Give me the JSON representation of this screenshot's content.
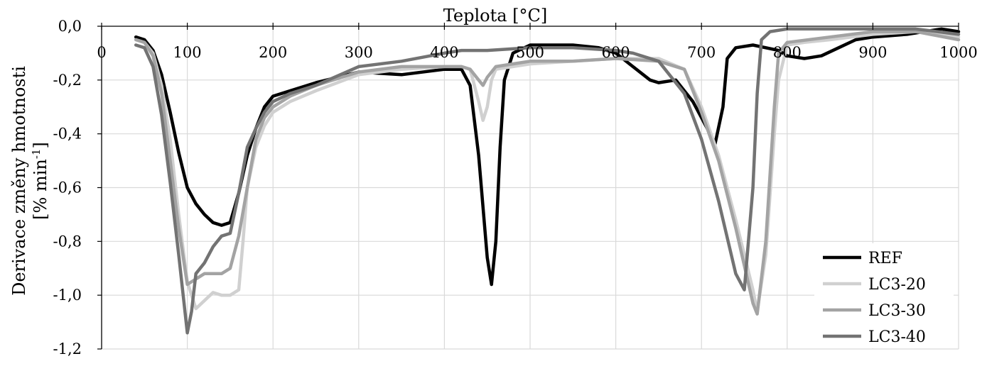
{
  "chart_data": {
    "type": "line",
    "title": "",
    "xlabel": "Teplota [°C]",
    "ylabel_line1": "Derivace změny hmotnosti",
    "ylabel_line2_prefix": "[% min",
    "ylabel_line2_sup": "-1",
    "ylabel_line2_suffix": "]",
    "xlim": [
      0,
      1000
    ],
    "ylim": [
      -1.2,
      0.0
    ],
    "x_ticks": [
      0,
      100,
      200,
      300,
      400,
      500,
      600,
      700,
      800,
      900,
      1000
    ],
    "x_tick_labels": [
      "0",
      "100",
      "200",
      "300",
      "400",
      "500",
      "600",
      "700",
      "800",
      "900",
      "1000"
    ],
    "y_ticks": [
      0.0,
      -0.2,
      -0.4,
      -0.6,
      -0.8,
      -1.0,
      -1.2
    ],
    "y_tick_labels": [
      "0,0",
      "-0,2",
      "-0,4",
      "-0,6",
      "-0,8",
      "-1,0",
      "-1,2"
    ],
    "x_axis_position": "top",
    "grid": true,
    "legend_position": "bottom-right",
    "series": [
      {
        "name": "REF",
        "color": "#000000",
        "points": [
          [
            40,
            -0.04
          ],
          [
            50,
            -0.05
          ],
          [
            60,
            -0.09
          ],
          [
            70,
            -0.18
          ],
          [
            80,
            -0.32
          ],
          [
            90,
            -0.47
          ],
          [
            100,
            -0.6
          ],
          [
            110,
            -0.66
          ],
          [
            120,
            -0.7
          ],
          [
            130,
            -0.73
          ],
          [
            140,
            -0.74
          ],
          [
            150,
            -0.73
          ],
          [
            160,
            -0.62
          ],
          [
            170,
            -0.48
          ],
          [
            180,
            -0.38
          ],
          [
            190,
            -0.3
          ],
          [
            200,
            -0.26
          ],
          [
            220,
            -0.24
          ],
          [
            250,
            -0.21
          ],
          [
            300,
            -0.17
          ],
          [
            350,
            -0.18
          ],
          [
            400,
            -0.16
          ],
          [
            420,
            -0.16
          ],
          [
            430,
            -0.22
          ],
          [
            440,
            -0.48
          ],
          [
            450,
            -0.86
          ],
          [
            455,
            -0.96
          ],
          [
            460,
            -0.8
          ],
          [
            465,
            -0.45
          ],
          [
            470,
            -0.2
          ],
          [
            480,
            -0.1
          ],
          [
            500,
            -0.07
          ],
          [
            550,
            -0.07
          ],
          [
            580,
            -0.08
          ],
          [
            600,
            -0.1
          ],
          [
            620,
            -0.15
          ],
          [
            640,
            -0.2
          ],
          [
            650,
            -0.21
          ],
          [
            670,
            -0.2
          ],
          [
            690,
            -0.28
          ],
          [
            710,
            -0.4
          ],
          [
            715,
            -0.45
          ],
          [
            725,
            -0.3
          ],
          [
            730,
            -0.12
          ],
          [
            740,
            -0.08
          ],
          [
            760,
            -0.07
          ],
          [
            790,
            -0.09
          ],
          [
            800,
            -0.11
          ],
          [
            820,
            -0.12
          ],
          [
            840,
            -0.11
          ],
          [
            860,
            -0.08
          ],
          [
            880,
            -0.05
          ],
          [
            900,
            -0.04
          ],
          [
            940,
            -0.03
          ],
          [
            980,
            -0.01
          ],
          [
            1000,
            -0.02
          ]
        ]
      },
      {
        "name": "LC3-20",
        "color": "#d0d0d0",
        "points": [
          [
            40,
            -0.05
          ],
          [
            50,
            -0.06
          ],
          [
            60,
            -0.1
          ],
          [
            70,
            -0.22
          ],
          [
            80,
            -0.42
          ],
          [
            90,
            -0.7
          ],
          [
            100,
            -0.95
          ],
          [
            110,
            -1.05
          ],
          [
            120,
            -1.02
          ],
          [
            130,
            -0.99
          ],
          [
            140,
            -1.0
          ],
          [
            150,
            -1.0
          ],
          [
            160,
            -0.98
          ],
          [
            165,
            -0.8
          ],
          [
            170,
            -0.6
          ],
          [
            180,
            -0.45
          ],
          [
            190,
            -0.37
          ],
          [
            200,
            -0.32
          ],
          [
            220,
            -0.28
          ],
          [
            250,
            -0.24
          ],
          [
            300,
            -0.18
          ],
          [
            350,
            -0.16
          ],
          [
            400,
            -0.15
          ],
          [
            420,
            -0.15
          ],
          [
            430,
            -0.16
          ],
          [
            440,
            -0.28
          ],
          [
            445,
            -0.35
          ],
          [
            450,
            -0.3
          ],
          [
            455,
            -0.2
          ],
          [
            460,
            -0.16
          ],
          [
            480,
            -0.15
          ],
          [
            500,
            -0.14
          ],
          [
            550,
            -0.13
          ],
          [
            600,
            -0.12
          ],
          [
            650,
            -0.12
          ],
          [
            680,
            -0.16
          ],
          [
            700,
            -0.3
          ],
          [
            720,
            -0.48
          ],
          [
            740,
            -0.72
          ],
          [
            760,
            -0.98
          ],
          [
            765,
            -1.06
          ],
          [
            775,
            -0.85
          ],
          [
            785,
            -0.4
          ],
          [
            790,
            -0.2
          ],
          [
            800,
            -0.07
          ],
          [
            820,
            -0.06
          ],
          [
            850,
            -0.05
          ],
          [
            900,
            -0.03
          ],
          [
            950,
            -0.02
          ],
          [
            1000,
            -0.04
          ]
        ]
      },
      {
        "name": "LC3-30",
        "color": "#a3a3a3",
        "points": [
          [
            40,
            -0.05
          ],
          [
            50,
            -0.06
          ],
          [
            60,
            -0.11
          ],
          [
            70,
            -0.25
          ],
          [
            80,
            -0.5
          ],
          [
            90,
            -0.75
          ],
          [
            100,
            -0.96
          ],
          [
            110,
            -0.94
          ],
          [
            120,
            -0.92
          ],
          [
            130,
            -0.92
          ],
          [
            140,
            -0.92
          ],
          [
            150,
            -0.9
          ],
          [
            160,
            -0.78
          ],
          [
            170,
            -0.6
          ],
          [
            180,
            -0.42
          ],
          [
            190,
            -0.34
          ],
          [
            200,
            -0.3
          ],
          [
            220,
            -0.26
          ],
          [
            250,
            -0.22
          ],
          [
            300,
            -0.17
          ],
          [
            350,
            -0.15
          ],
          [
            400,
            -0.15
          ],
          [
            420,
            -0.15
          ],
          [
            430,
            -0.16
          ],
          [
            440,
            -0.2
          ],
          [
            445,
            -0.22
          ],
          [
            450,
            -0.19
          ],
          [
            460,
            -0.15
          ],
          [
            480,
            -0.14
          ],
          [
            500,
            -0.13
          ],
          [
            550,
            -0.13
          ],
          [
            600,
            -0.12
          ],
          [
            650,
            -0.13
          ],
          [
            680,
            -0.16
          ],
          [
            700,
            -0.32
          ],
          [
            720,
            -0.5
          ],
          [
            740,
            -0.75
          ],
          [
            760,
            -1.03
          ],
          [
            765,
            -1.07
          ],
          [
            775,
            -0.8
          ],
          [
            785,
            -0.3
          ],
          [
            790,
            -0.1
          ],
          [
            800,
            -0.06
          ],
          [
            850,
            -0.04
          ],
          [
            900,
            -0.02
          ],
          [
            950,
            -0.02
          ],
          [
            1000,
            -0.05
          ]
        ]
      },
      {
        "name": "LC3-40",
        "color": "#737373",
        "points": [
          [
            40,
            -0.07
          ],
          [
            50,
            -0.08
          ],
          [
            60,
            -0.15
          ],
          [
            70,
            -0.33
          ],
          [
            80,
            -0.58
          ],
          [
            90,
            -0.85
          ],
          [
            100,
            -1.14
          ],
          [
            105,
            -1.06
          ],
          [
            110,
            -0.92
          ],
          [
            120,
            -0.88
          ],
          [
            130,
            -0.82
          ],
          [
            140,
            -0.78
          ],
          [
            150,
            -0.77
          ],
          [
            160,
            -0.62
          ],
          [
            170,
            -0.45
          ],
          [
            180,
            -0.38
          ],
          [
            190,
            -0.32
          ],
          [
            200,
            -0.28
          ],
          [
            220,
            -0.25
          ],
          [
            250,
            -0.22
          ],
          [
            300,
            -0.15
          ],
          [
            350,
            -0.13
          ],
          [
            400,
            -0.1
          ],
          [
            420,
            -0.09
          ],
          [
            450,
            -0.09
          ],
          [
            500,
            -0.08
          ],
          [
            550,
            -0.08
          ],
          [
            600,
            -0.09
          ],
          [
            620,
            -0.1
          ],
          [
            650,
            -0.13
          ],
          [
            680,
            -0.25
          ],
          [
            700,
            -0.42
          ],
          [
            720,
            -0.65
          ],
          [
            740,
            -0.92
          ],
          [
            750,
            -0.98
          ],
          [
            760,
            -0.6
          ],
          [
            765,
            -0.25
          ],
          [
            770,
            -0.05
          ],
          [
            780,
            -0.02
          ],
          [
            800,
            -0.01
          ],
          [
            850,
            -0.01
          ],
          [
            900,
            -0.01
          ],
          [
            950,
            -0.01
          ],
          [
            1000,
            -0.03
          ]
        ]
      }
    ]
  }
}
